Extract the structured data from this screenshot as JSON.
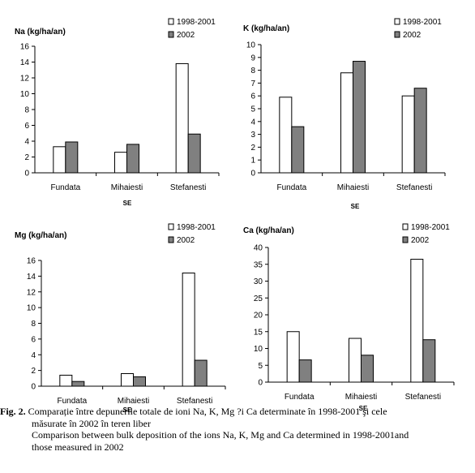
{
  "chart_data": [
    {
      "type": "bar",
      "title": "Na (kg/ha/an)",
      "xlabel": "SE",
      "ylabel": "",
      "categories": [
        "Fundata",
        "Mihaiesti",
        "Stefanesti"
      ],
      "series": [
        {
          "name": "1998-2001",
          "values": [
            3.3,
            2.6,
            13.8
          ]
        },
        {
          "name": "2002",
          "values": [
            3.9,
            3.6,
            4.9
          ]
        }
      ],
      "ylim": [
        0,
        16
      ],
      "yticks": [
        0,
        2,
        4,
        6,
        8,
        10,
        12,
        14,
        16
      ],
      "grid": false,
      "legend_position": "top-right",
      "colors": {
        "series_1": "#ffffff",
        "series_2": "#808080"
      }
    },
    {
      "type": "bar",
      "title": "K (kg/ha/an)",
      "xlabel": "SE",
      "ylabel": "",
      "categories": [
        "Fundata",
        "Mihaiesti",
        "Stefanesti"
      ],
      "series": [
        {
          "name": "1998-2001",
          "values": [
            5.9,
            7.8,
            6.0
          ]
        },
        {
          "name": "2002",
          "values": [
            3.6,
            8.7,
            6.6
          ]
        }
      ],
      "ylim": [
        0,
        10
      ],
      "yticks": [
        0,
        1,
        2,
        3,
        4,
        5,
        6,
        7,
        8,
        9,
        10
      ],
      "grid": false,
      "legend_position": "top-right",
      "colors": {
        "series_1": "#ffffff",
        "series_2": "#808080"
      }
    },
    {
      "type": "bar",
      "title": "Mg (kg/ha/an)",
      "xlabel": "SE",
      "ylabel": "",
      "categories": [
        "Fundata",
        "Mihaiesti",
        "Stefanesti"
      ],
      "series": [
        {
          "name": "1998-2001",
          "values": [
            1.4,
            1.6,
            14.4
          ]
        },
        {
          "name": "2002",
          "values": [
            0.6,
            1.2,
            3.3
          ]
        }
      ],
      "ylim": [
        0,
        16
      ],
      "yticks": [
        0,
        2,
        4,
        6,
        8,
        10,
        12,
        14,
        16
      ],
      "grid": false,
      "legend_position": "top-right",
      "colors": {
        "series_1": "#ffffff",
        "series_2": "#808080"
      }
    },
    {
      "type": "bar",
      "title": "Ca (kg/ha/an)",
      "xlabel": "SE",
      "ylabel": "",
      "categories": [
        "Fundata",
        "Mihaiesti",
        "Stefanesti"
      ],
      "series": [
        {
          "name": "1998-2001",
          "values": [
            15.0,
            13.0,
            36.5
          ]
        },
        {
          "name": "2002",
          "values": [
            6.6,
            8.0,
            12.6
          ]
        }
      ],
      "ylim": [
        0,
        40
      ],
      "yticks": [
        0,
        5,
        10,
        15,
        20,
        25,
        30,
        35,
        40
      ],
      "grid": false,
      "legend_position": "top-right",
      "colors": {
        "series_1": "#ffffff",
        "series_2": "#808080"
      }
    }
  ],
  "caption": {
    "label": "Fig. 2.",
    "line1": "Comparație între depunerile totale de ioni Na, K, Mg ?i Ca determinate în 1998-2001 şi cele",
    "line2": "măsurate în 2002 în teren liber",
    "line3": "Comparison between bulk deposition of the ions Na, K, Mg and Ca determined in 1998-2001and",
    "line4": "those measured in 2002"
  }
}
